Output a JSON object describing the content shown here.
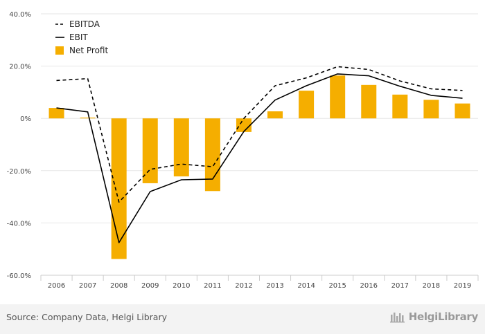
{
  "chart_data": {
    "type": "bar",
    "categories": [
      "2006",
      "2007",
      "2008",
      "2009",
      "2010",
      "2011",
      "2012",
      "2013",
      "2014",
      "2015",
      "2016",
      "2017",
      "2018",
      "2019"
    ],
    "series": [
      {
        "name": "EBITDA",
        "kind": "line",
        "style": "dashed",
        "color": "#000000",
        "values": [
          14.5,
          15.2,
          -32.0,
          -19.5,
          -17.5,
          -18.5,
          0.0,
          12.5,
          15.5,
          19.8,
          18.7,
          14.3,
          11.3,
          10.7
        ]
      },
      {
        "name": "EBIT",
        "kind": "line",
        "style": "solid",
        "color": "#000000",
        "values": [
          4.0,
          2.5,
          -47.5,
          -28.0,
          -23.5,
          -23.2,
          -5.0,
          7.0,
          12.5,
          17.0,
          16.3,
          12.3,
          8.8,
          7.7
        ]
      },
      {
        "name": "Net Profit",
        "kind": "bar",
        "color": "#f5ae00",
        "values": [
          4.0,
          0.3,
          -53.8,
          -24.8,
          -22.2,
          -27.8,
          -5.2,
          2.7,
          10.6,
          16.4,
          12.8,
          9.1,
          7.1,
          5.7
        ]
      }
    ],
    "y_ticks": [
      "40.0%",
      "20.0%",
      "0%",
      "-20.0%",
      "-40.0%",
      "-60.0%"
    ],
    "ylim": [
      -60,
      40
    ],
    "grid": true,
    "legend_position": "top-left"
  },
  "footer": {
    "source": "Source: Company Data, Helgi Library",
    "brand": "HelgiLibrary"
  }
}
